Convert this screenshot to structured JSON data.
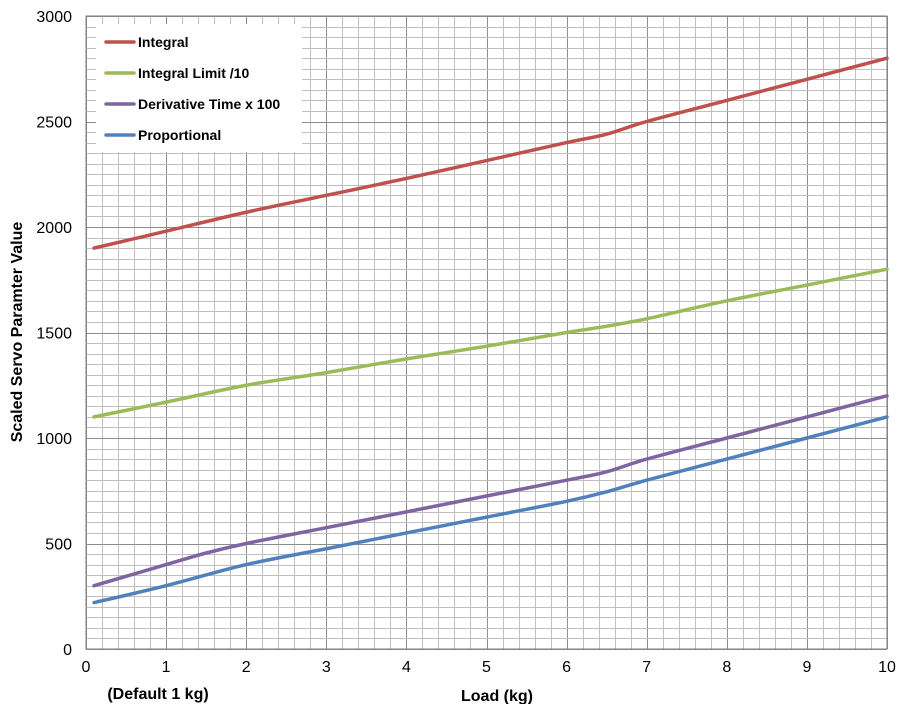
{
  "chart_data": {
    "type": "line",
    "title": "",
    "xlabel": "Load (kg)",
    "ylabel": "Scaled Servo Paramter Value",
    "x_annotation": "(Default 1 kg)",
    "xlim": [
      0,
      10
    ],
    "ylim": [
      0,
      3000
    ],
    "x_ticks": [
      0,
      1,
      2,
      3,
      4,
      5,
      6,
      7,
      8,
      9,
      10
    ],
    "y_ticks": [
      0,
      500,
      1000,
      1500,
      2000,
      2500,
      3000
    ],
    "grid": true,
    "legend_position": "top-left",
    "series": [
      {
        "name": "Integral",
        "color": "#c0504d",
        "x": [
          0.1,
          1,
          2,
          3,
          4,
          5,
          6,
          6.5,
          7,
          8,
          9,
          10
        ],
        "y": [
          1900,
          1980,
          2070,
          2150,
          2230,
          2315,
          2400,
          2440,
          2500,
          2600,
          2700,
          2800
        ]
      },
      {
        "name": "Integral Limit /10",
        "color": "#9bbb59",
        "x": [
          0.1,
          1,
          2,
          3,
          4,
          5,
          6,
          6.5,
          7,
          8,
          9,
          10
        ],
        "y": [
          1100,
          1170,
          1250,
          1310,
          1375,
          1435,
          1500,
          1530,
          1565,
          1650,
          1725,
          1800
        ]
      },
      {
        "name": "Derivative Time x 100",
        "color": "#8064a2",
        "x": [
          0.1,
          1,
          1.5,
          2,
          3,
          4,
          5,
          6,
          6.5,
          7,
          8,
          9,
          10
        ],
        "y": [
          300,
          400,
          455,
          500,
          575,
          650,
          725,
          800,
          840,
          900,
          1000,
          1100,
          1200
        ]
      },
      {
        "name": "Proportional",
        "color": "#4f81bd",
        "x": [
          0.1,
          1,
          2,
          3,
          4,
          5,
          6,
          6.5,
          7,
          8,
          9,
          10
        ],
        "y": [
          220,
          300,
          400,
          475,
          550,
          625,
          700,
          745,
          800,
          900,
          1000,
          1100
        ]
      }
    ]
  }
}
